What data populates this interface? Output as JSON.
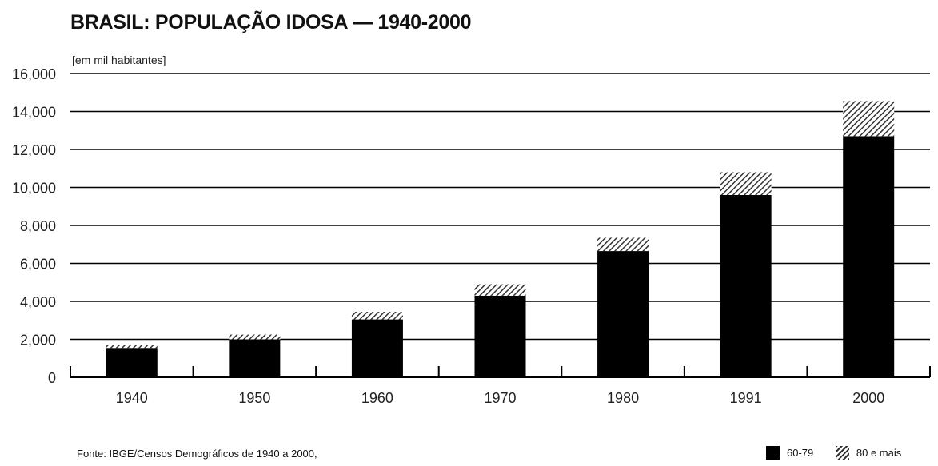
{
  "chart_data": {
    "type": "bar",
    "stacked": true,
    "title": "BRASIL: POPULAÇÃO IDOSA — 1940-2000",
    "unit_label": "[em mil habitantes]",
    "xlabel": "",
    "ylabel": "",
    "categories": [
      "1940",
      "1950",
      "1960",
      "1970",
      "1980",
      "1991",
      "2000"
    ],
    "series": [
      {
        "name": "60-79",
        "values": [
          1550,
          2000,
          3050,
          4300,
          6650,
          9600,
          12700
        ]
      },
      {
        "name": "80 e mais",
        "values": [
          150,
          250,
          400,
          600,
          700,
          1200,
          1850
        ]
      }
    ],
    "ylim": [
      0,
      16000
    ],
    "yticks": [
      0,
      2000,
      4000,
      6000,
      8000,
      10000,
      12000,
      14000,
      16000
    ],
    "ytick_labels": [
      "0",
      "2,000",
      "4,000",
      "6,000",
      "8,000",
      "10,000",
      "12,000",
      "14,000",
      "16,000"
    ],
    "grid": true,
    "legend": "bottom-right",
    "source": "Fonte: IBGE/Censos Demográficos de 1940 a 2000,"
  },
  "colors": {
    "bar_solid": "#000000",
    "bar_hatch": "#333333",
    "grid": "#000000"
  }
}
